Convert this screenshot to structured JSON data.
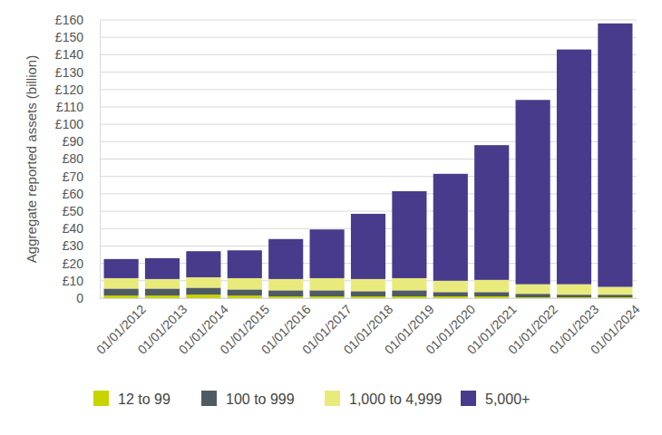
{
  "chart_data": {
    "type": "bar",
    "stacked": true,
    "grid": true,
    "legend": "bottom",
    "y_label": "Aggregate reported assets (billion)",
    "categories": [
      "01/01/2012",
      "01/01/2013",
      "01/01/2014",
      "01/01/2015",
      "01/01/2016",
      "01/01/2017",
      "01/01/2018",
      "01/01/2019",
      "01/01/2020",
      "01/01/2021",
      "01/01/2022",
      "01/01/2023",
      "01/01/2024"
    ],
    "series": [
      {
        "name": "12 to 99",
        "color": "#c8d400",
        "values": [
          1.5,
          1.5,
          2,
          1.5,
          1,
          1,
          1,
          1,
          1,
          1,
          0.5,
          0.5,
          0.5
        ]
      },
      {
        "name": "100 to 999",
        "color": "#4f5b63",
        "values": [
          4,
          4,
          4,
          3.5,
          3.5,
          3.5,
          3,
          3.5,
          2.5,
          2.5,
          2,
          1.5,
          1.5
        ]
      },
      {
        "name": "1,000 to 4,999",
        "color": "#e8eb7c",
        "values": [
          6,
          5.5,
          6,
          6.5,
          6.5,
          7,
          7,
          7,
          6.5,
          7,
          5.5,
          6,
          4.5
        ]
      },
      {
        "name": "5,000+",
        "color": "#483b8b",
        "values": [
          11,
          12,
          15,
          16,
          23,
          28,
          37.5,
          50,
          61.5,
          77.5,
          106,
          135,
          151.5
        ]
      }
    ],
    "ylim": [
      0,
      160
    ],
    "yticks": [
      0,
      {
        "value": 10,
        "label": "£10"
      },
      {
        "value": 20,
        "label": "£20"
      },
      {
        "value": 30,
        "label": "£30"
      },
      {
        "value": 40,
        "label": "£40"
      },
      {
        "value": 50,
        "label": "£50"
      },
      {
        "value": 60,
        "label": "£60"
      },
      {
        "value": 70,
        "label": "£70"
      },
      {
        "value": 80,
        "label": "£80"
      },
      {
        "value": 90,
        "label": "£90"
      },
      {
        "value": 100,
        "label": "£100"
      },
      {
        "value": 110,
        "label": "£110"
      },
      {
        "value": 120,
        "label": "£120"
      },
      {
        "value": 130,
        "label": "£130"
      },
      {
        "value": 140,
        "label": "£140"
      },
      {
        "value": 150,
        "label": "£150"
      },
      {
        "value": 160,
        "label": "£160"
      }
    ]
  }
}
